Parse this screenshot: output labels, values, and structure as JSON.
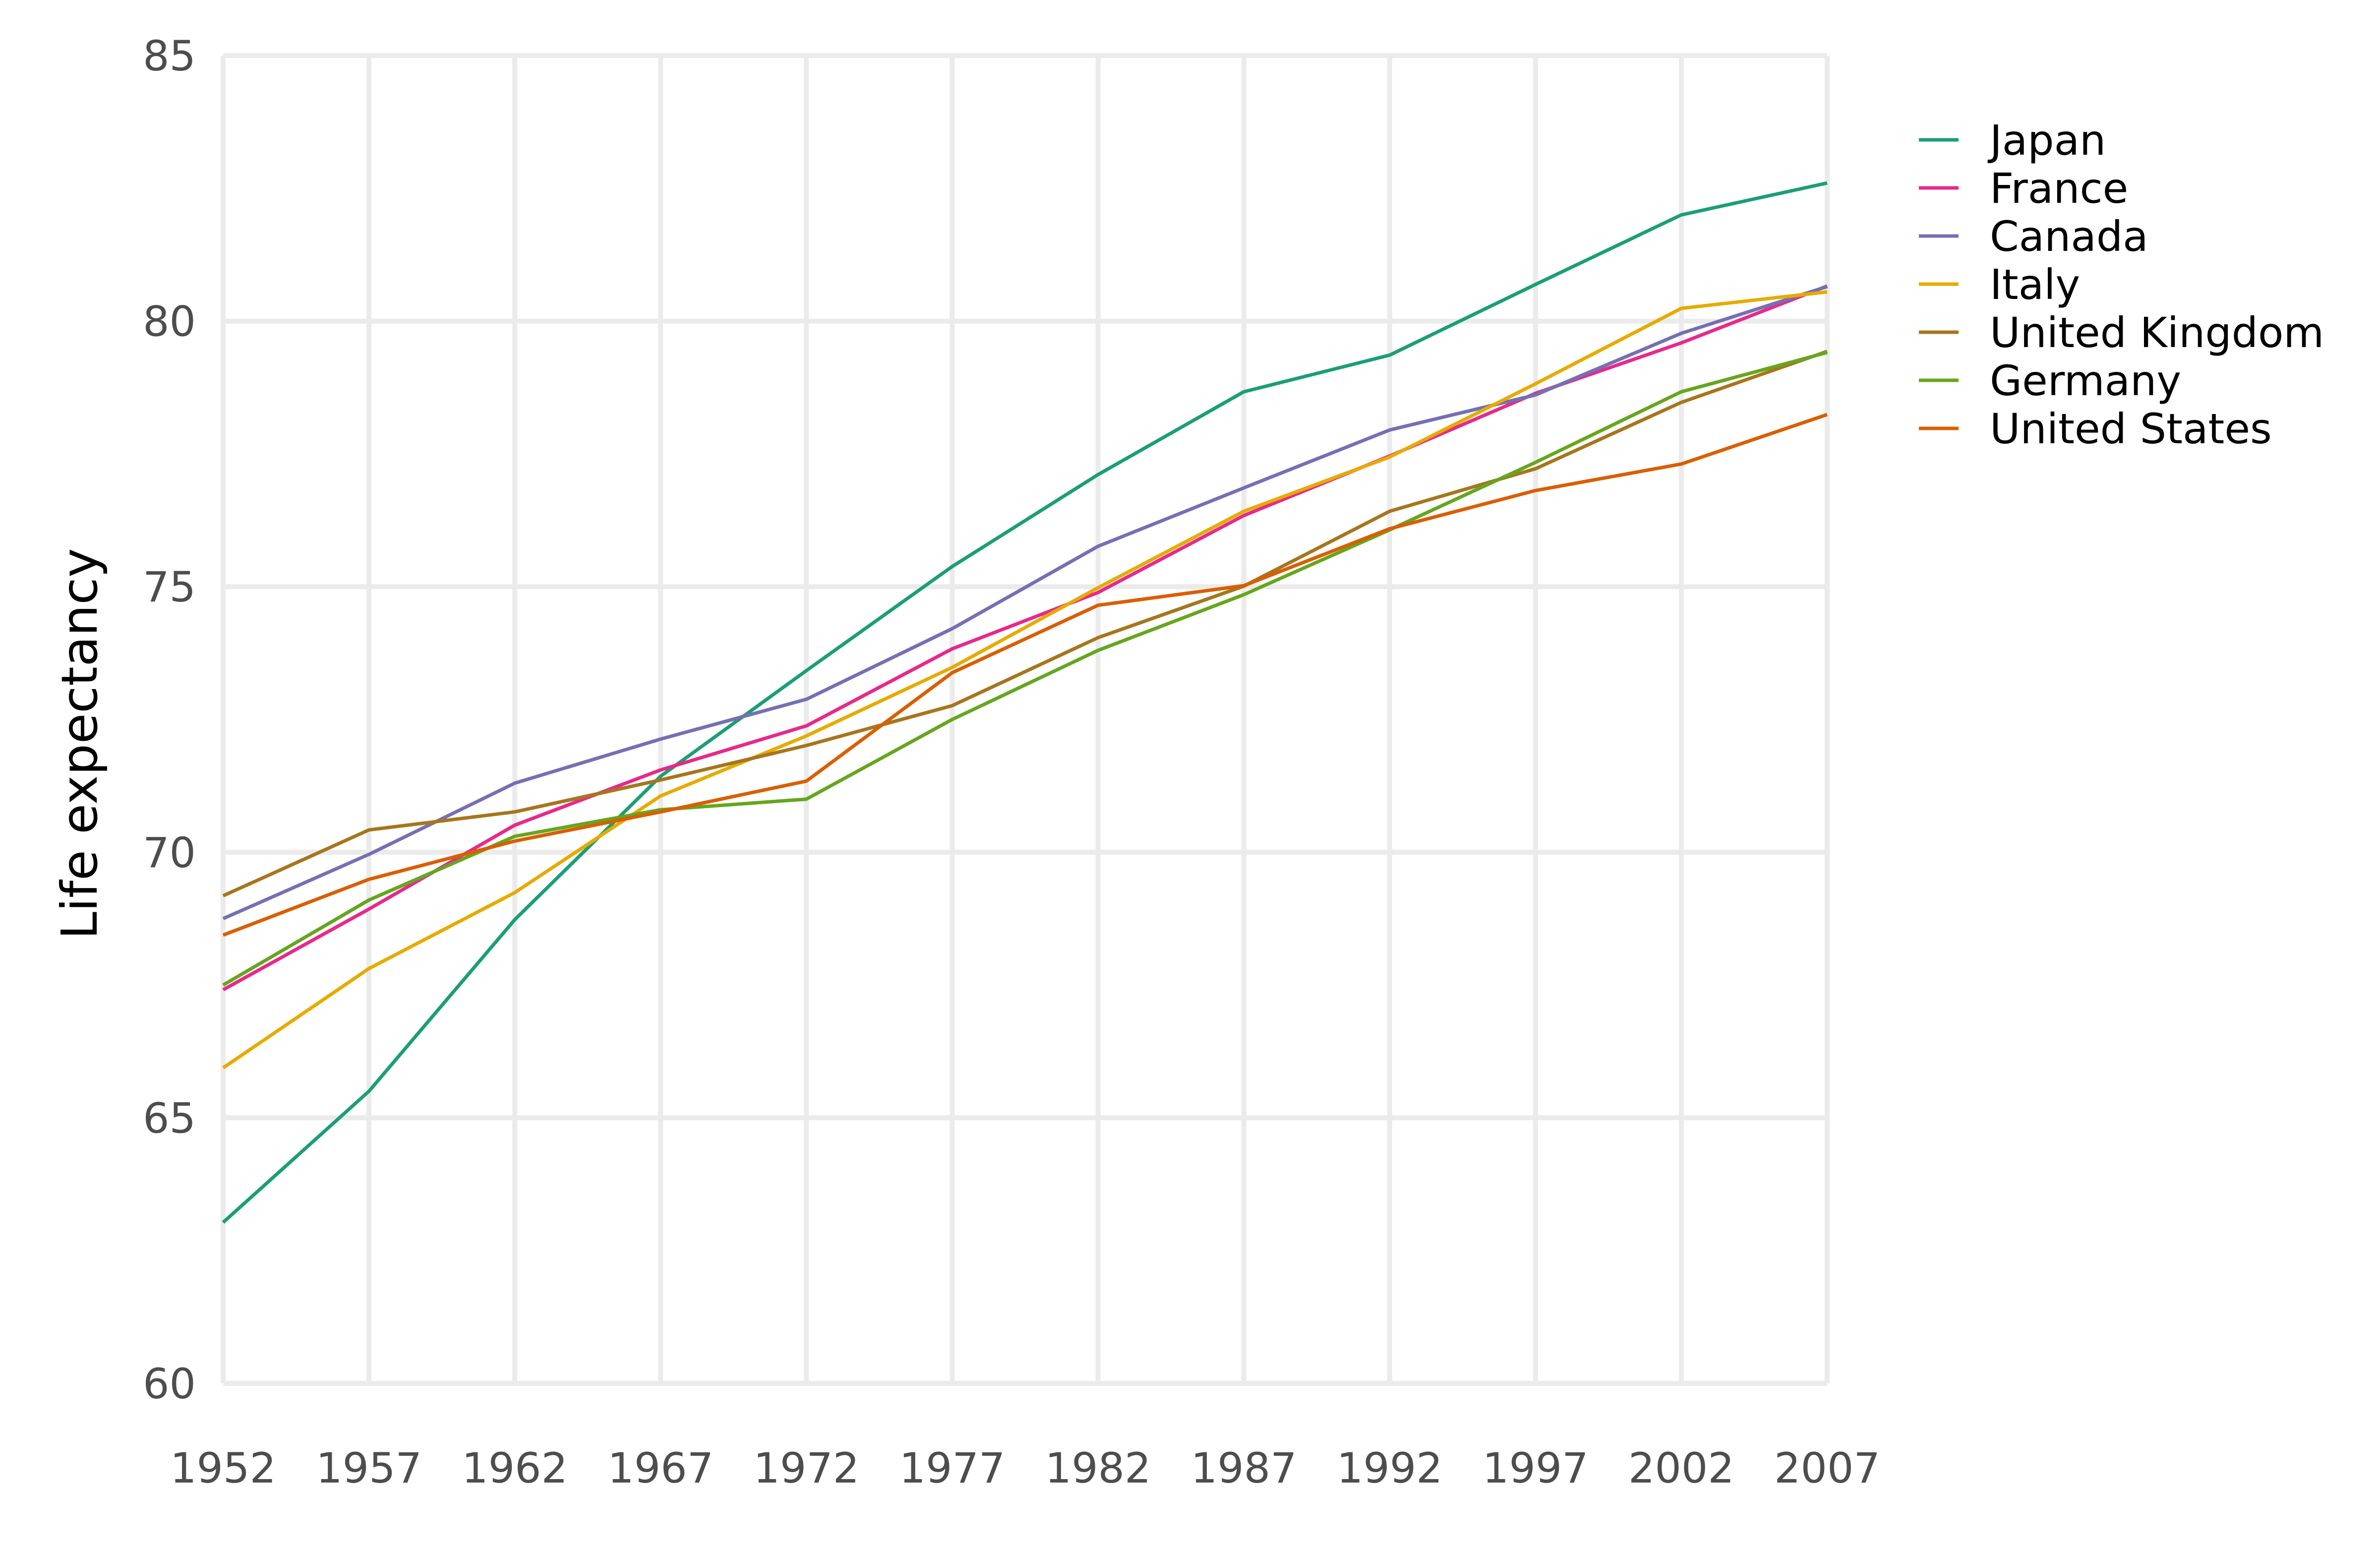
{
  "chart_data": {
    "type": "line",
    "title": "",
    "xlabel": "",
    "ylabel": "Life expectancy",
    "x": [
      1952,
      1957,
      1962,
      1967,
      1972,
      1977,
      1982,
      1987,
      1992,
      1997,
      2002,
      2007
    ],
    "x_tick_labels": [
      "1952",
      "1957",
      "1962",
      "1967",
      "1972",
      "1977",
      "1982",
      "1987",
      "1992",
      "1997",
      "2002",
      "2007"
    ],
    "xlim": [
      1952,
      2007
    ],
    "ylim": [
      60,
      85
    ],
    "y_ticks": [
      60,
      65,
      70,
      75,
      80,
      85
    ],
    "y_tick_labels": [
      "60",
      "65",
      "70",
      "75",
      "80",
      "85"
    ],
    "grid": true,
    "legend_position": "top-right",
    "series": [
      {
        "name": "Japan",
        "color": "#1b9e77",
        "values": [
          63.03,
          65.5,
          68.73,
          71.43,
          73.42,
          75.38,
          77.11,
          78.67,
          79.36,
          80.69,
          82.0,
          82.6
        ]
      },
      {
        "name": "France",
        "color": "#e7298a",
        "values": [
          67.41,
          68.93,
          70.51,
          71.55,
          72.38,
          73.83,
          74.89,
          76.34,
          77.46,
          78.64,
          79.59,
          80.66
        ]
      },
      {
        "name": "Canada",
        "color": "#7570b3",
        "values": [
          68.75,
          69.96,
          71.3,
          72.13,
          72.88,
          74.21,
          75.76,
          76.86,
          77.95,
          78.61,
          79.77,
          80.65
        ]
      },
      {
        "name": "Italy",
        "color": "#e6ab02",
        "values": [
          65.94,
          67.81,
          69.24,
          71.06,
          72.19,
          73.48,
          74.98,
          76.42,
          77.44,
          78.82,
          80.24,
          80.55
        ]
      },
      {
        "name": "United Kingdom",
        "color": "#a6761d",
        "values": [
          69.18,
          70.42,
          70.76,
          71.36,
          72.01,
          72.76,
          74.04,
          75.01,
          76.42,
          77.22,
          78.47,
          79.43
        ]
      },
      {
        "name": "Germany",
        "color": "#66a61e",
        "values": [
          67.5,
          69.1,
          70.3,
          70.8,
          71.0,
          72.5,
          73.8,
          74.85,
          76.07,
          77.34,
          78.67,
          79.41
        ]
      },
      {
        "name": "United States",
        "color": "#d95f02",
        "values": [
          68.44,
          69.49,
          70.21,
          70.76,
          71.34,
          73.38,
          74.65,
          75.02,
          76.09,
          76.81,
          77.31,
          78.24
        ]
      }
    ]
  }
}
